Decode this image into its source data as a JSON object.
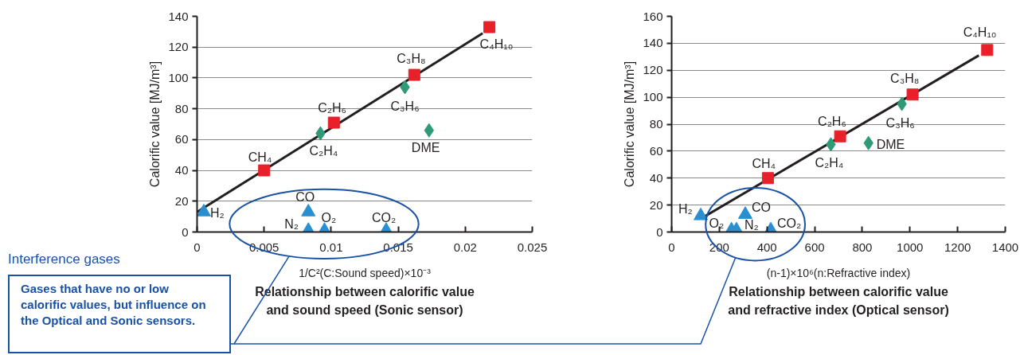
{
  "chart_data": [
    {
      "type": "scatter",
      "title": "Relationship between calorific value and sound speed (Sonic sensor)",
      "xlabel": "1/C²(C:Sound speed)×10⁻³",
      "ylabel": "Calorific value [MJ/m³]",
      "xlim": [
        0,
        0.025
      ],
      "xticks": [
        0,
        0.005,
        0.01,
        0.015,
        0.02,
        0.025
      ],
      "ylim": [
        0,
        140
      ],
      "yticks": [
        0,
        20,
        40,
        60,
        80,
        100,
        120,
        140
      ],
      "grid": "y",
      "series": [
        {
          "type": "line",
          "color": "#231f20",
          "marker": "none",
          "line_style": "solid",
          "x": [
            0,
            0.0213
          ],
          "values": [
            13,
            129
          ]
        },
        {
          "type": "scatter",
          "color": "#e8202a",
          "marker": "square",
          "x": [
            0.005,
            0.0102,
            0.0162,
            0.0218
          ],
          "values": [
            40,
            71,
            102,
            133
          ]
        },
        {
          "type": "scatter",
          "color": "#2e9a78",
          "marker": "diamond",
          "x": [
            0.0092,
            0.0155,
            0.0173
          ],
          "values": [
            64,
            94,
            66
          ]
        },
        {
          "type": "scatter",
          "color": "#2a8fd0",
          "marker": "triangle",
          "x": [
            0.0005,
            0.0083,
            0.0083,
            0.0095,
            0.0141
          ],
          "values": [
            13,
            13,
            1,
            1,
            1
          ]
        }
      ],
      "annotations": [
        {
          "text": "CH₄",
          "x": 0.005,
          "y": 40
        },
        {
          "text": "C₂H₆",
          "x": 0.0102,
          "y": 71
        },
        {
          "text": "C₃H₈",
          "x": 0.0162,
          "y": 102
        },
        {
          "text": "C₄H₁₀",
          "x": 0.0218,
          "y": 133
        },
        {
          "text": "C₂H₄",
          "x": 0.0092,
          "y": 64
        },
        {
          "text": "C₃H₆",
          "x": 0.0155,
          "y": 94
        },
        {
          "text": "DME",
          "x": 0.0173,
          "y": 66
        },
        {
          "text": "H₂",
          "x": 0.0005,
          "y": 13
        },
        {
          "text": "CO",
          "x": 0.0083,
          "y": 13
        },
        {
          "text": "N₂",
          "x": 0.0083,
          "y": 1
        },
        {
          "text": "O₂",
          "x": 0.0095,
          "y": 1
        },
        {
          "text": "CO₂",
          "x": 0.0141,
          "y": 1
        },
        "Interference gases",
        "Gases that have no or low calorific values, but influence on the Optical and Sonic sensors."
      ]
    },
    {
      "type": "scatter",
      "title": "Relationship between calorific value and refractive index (Optical sensor)",
      "xlabel": "(n-1)×10⁶(n:Refractive index)",
      "ylabel": "Calorific value [MJ/m³]",
      "xlim": [
        0,
        1400
      ],
      "xticks": [
        0,
        200,
        400,
        600,
        800,
        1000,
        1200,
        1400
      ],
      "ylim": [
        0,
        160
      ],
      "yticks": [
        0,
        20,
        40,
        60,
        80,
        100,
        120,
        140,
        160
      ],
      "grid": "y",
      "series": [
        {
          "type": "line",
          "color": "#231f20",
          "marker": "none",
          "line_style": "solid",
          "x": [
            133,
            1289
          ],
          "values": [
            11,
            131
          ]
        },
        {
          "type": "scatter",
          "color": "#e8202a",
          "marker": "square",
          "x": [
            404,
            707,
            1011,
            1324
          ],
          "values": [
            40,
            71,
            102,
            135
          ]
        },
        {
          "type": "scatter",
          "color": "#2e9a78",
          "marker": "diamond",
          "x": [
            668,
            966,
            826
          ],
          "values": [
            65,
            95,
            66
          ]
        },
        {
          "type": "scatter",
          "color": "#2a8fd0",
          "marker": "triangle",
          "x": [
            122,
            309,
            251,
            272,
            416
          ],
          "values": [
            12,
            13,
            1.5,
            1.5,
            1.5
          ]
        }
      ],
      "annotations": [
        {
          "text": "CH₄",
          "x": 404,
          "y": 40
        },
        {
          "text": "C₂H₆",
          "x": 707,
          "y": 71
        },
        {
          "text": "C₃H₈",
          "x": 1011,
          "y": 102
        },
        {
          "text": "C₄H₁₀",
          "x": 1324,
          "y": 135
        },
        {
          "text": "C₂H₄",
          "x": 668,
          "y": 65
        },
        {
          "text": "C₃H₆",
          "x": 966,
          "y": 95
        },
        {
          "text": "DME",
          "x": 826,
          "y": 66
        },
        {
          "text": "H₂",
          "x": 122,
          "y": 12
        },
        {
          "text": "CO",
          "x": 309,
          "y": 13
        },
        {
          "text": "N₂",
          "x": 272,
          "y": 1.5
        },
        {
          "text": "O₂",
          "x": 251,
          "y": 1.5
        },
        {
          "text": "CO₂",
          "x": 416,
          "y": 1.5
        }
      ]
    }
  ]
}
